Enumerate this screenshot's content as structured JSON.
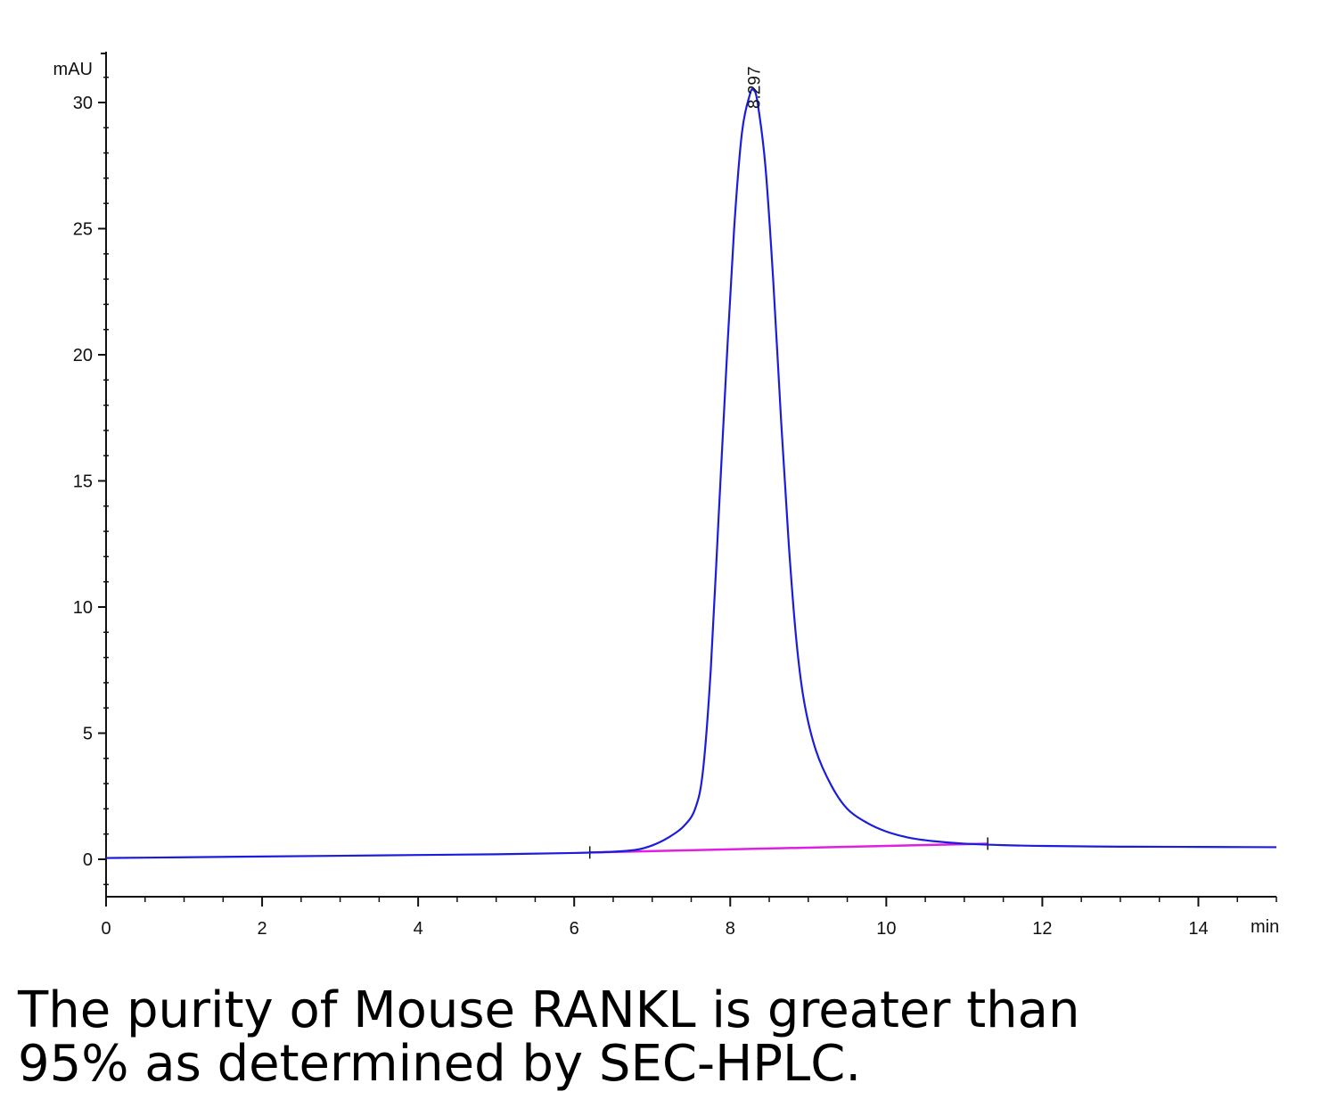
{
  "chart_data": {
    "type": "line",
    "x_unit": "min",
    "y_unit": "mAU",
    "xlim": [
      0,
      15
    ],
    "ylim": [
      -1.5,
      32
    ],
    "x_ticks": [
      0,
      2,
      4,
      6,
      8,
      10,
      12,
      14
    ],
    "y_ticks": [
      0,
      5,
      10,
      15,
      20,
      25,
      30
    ],
    "grid": false,
    "series": [
      {
        "color": "#1c1cdc",
        "x": [
          0,
          1,
          2,
          3,
          4,
          5,
          6,
          6.5,
          6.8,
          7.0,
          7.2,
          7.4,
          7.55,
          7.65,
          7.75,
          7.85,
          7.95,
          8.05,
          8.15,
          8.25,
          8.297,
          8.35,
          8.45,
          8.55,
          8.65,
          8.75,
          8.85,
          8.95,
          9.1,
          9.3,
          9.5,
          9.75,
          10.0,
          10.3,
          10.6,
          11.0,
          11.5,
          12,
          13,
          14,
          15
        ],
        "y": [
          0.05,
          0.08,
          0.11,
          0.14,
          0.17,
          0.2,
          0.25,
          0.3,
          0.38,
          0.55,
          0.85,
          1.3,
          2.0,
          3.5,
          7.5,
          13.5,
          19.5,
          25.0,
          28.8,
          30.3,
          30.5,
          30.0,
          27.5,
          23.0,
          17.5,
          12.5,
          8.6,
          6.2,
          4.3,
          2.9,
          2.0,
          1.45,
          1.1,
          0.85,
          0.72,
          0.62,
          0.56,
          0.53,
          0.5,
          0.49,
          0.48
        ]
      }
    ],
    "baseline": {
      "color": "#e020e0",
      "x": [
        6.2,
        11.3
      ],
      "y": [
        0.27,
        0.62
      ]
    },
    "peak_label": "8.297",
    "peak_x": 8.297
  },
  "caption": {
    "line1": "The purity of Mouse RANKL is greater than",
    "line2": "95% as determined by SEC-HPLC."
  }
}
